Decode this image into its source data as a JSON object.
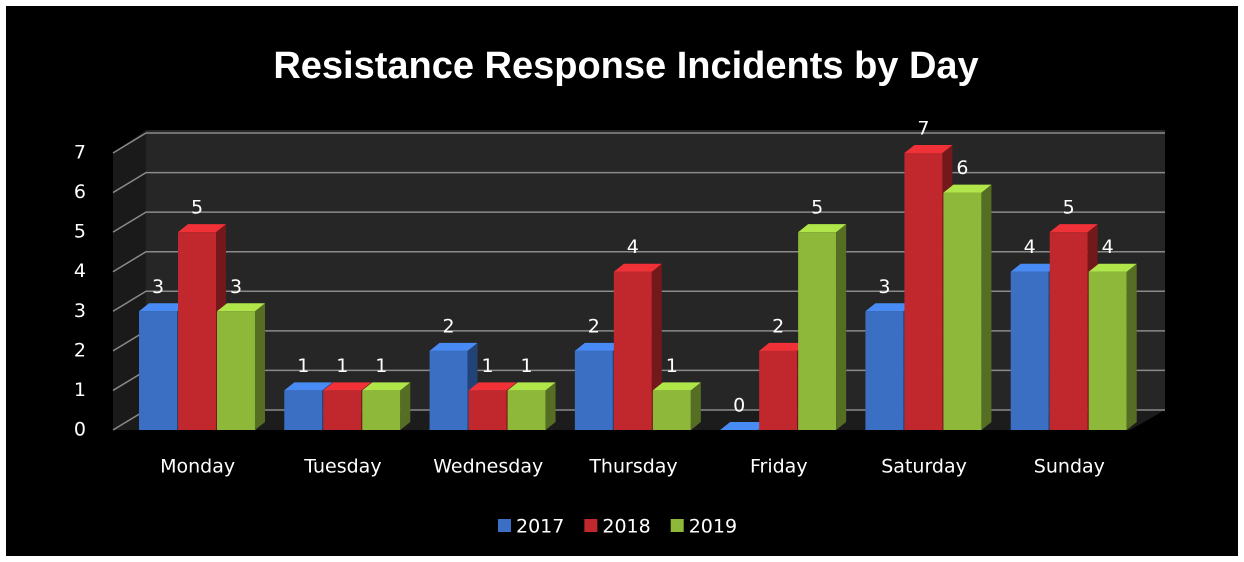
{
  "chart_data": {
    "type": "bar3d",
    "title": "Resistance Response Incidents by Day",
    "categories": [
      "Monday",
      "Tuesday",
      "Wednesday",
      "Thursday",
      "Friday",
      "Saturday",
      "Sunday"
    ],
    "series": [
      {
        "name": "2017",
        "color": "#3a6fc4",
        "values": [
          3,
          1,
          2,
          2,
          0,
          3,
          4
        ]
      },
      {
        "name": "2018",
        "color": "#c0282d",
        "values": [
          5,
          1,
          1,
          4,
          2,
          7,
          5
        ]
      },
      {
        "name": "2019",
        "color": "#8db83a",
        "values": [
          3,
          1,
          1,
          1,
          5,
          6,
          4
        ]
      }
    ],
    "ylim": [
      0,
      7
    ],
    "yticks": [
      0,
      1,
      2,
      3,
      4,
      5,
      6,
      7
    ],
    "grid": true,
    "legend": "bottom"
  }
}
